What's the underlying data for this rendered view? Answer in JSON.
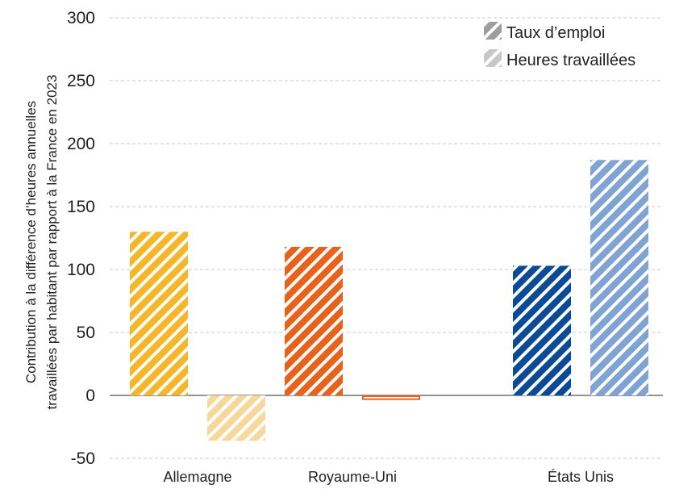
{
  "chart_data": {
    "type": "bar",
    "title": "",
    "xlabel": "",
    "ylabel_lines": [
      "Contribution à la différence d’heures annuelles",
      "travaillées par habitant par rapport à la France en 2023"
    ],
    "ylim": [
      -50,
      300
    ],
    "yticks": [
      -50,
      0,
      50,
      100,
      150,
      200,
      250,
      300
    ],
    "grid": true,
    "legend_position": "top-right",
    "categories": [
      "Allemagne",
      "Royaume-Uni",
      "États Unis"
    ],
    "series": [
      {
        "name": "Taux d’emploi",
        "values": [
          130,
          118,
          103
        ],
        "colors": [
          "#F6B62A",
          "#E8621B",
          "#0B4A97"
        ],
        "legend_color": "#9E9E9E"
      },
      {
        "name": "Heures travaillées",
        "values": [
          -36,
          -3,
          187
        ],
        "colors": [
          "#F7D89A",
          "#E8621B",
          "#7FA3D2"
        ],
        "legend_color": "#C8C8C8"
      }
    ]
  }
}
